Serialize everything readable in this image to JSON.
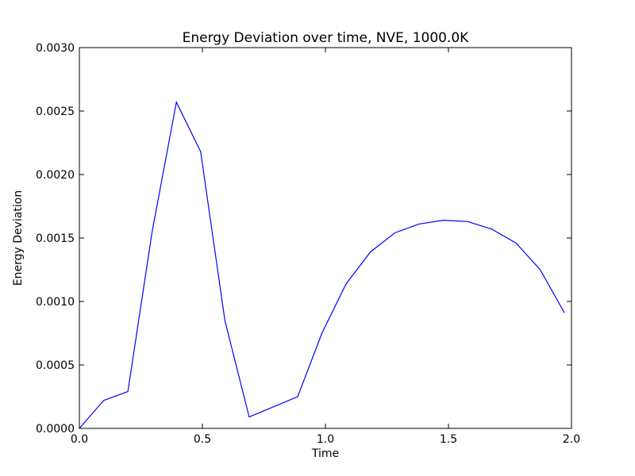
{
  "chart_data": {
    "type": "line",
    "title": "Energy Deviation over time, NVE, 1000.0K",
    "xlabel": "Time",
    "ylabel": "Energy Deviation",
    "xlim": [
      0.0,
      2.0
    ],
    "ylim": [
      0.0,
      0.003
    ],
    "grid": false,
    "x_ticks": [
      "0.0",
      "0.5",
      "1.0",
      "1.5",
      "2.0"
    ],
    "y_ticks": [
      "0.0000",
      "0.0005",
      "0.0010",
      "0.0015",
      "0.0020",
      "0.0025",
      "0.0030"
    ],
    "series": [
      {
        "color": "#0000ff",
        "x": [
          0.0,
          0.0986,
          0.1971,
          0.2957,
          0.3943,
          0.4929,
          0.5914,
          0.69,
          0.7886,
          0.8871,
          0.9857,
          1.0843,
          1.1829,
          1.2814,
          1.38,
          1.4786,
          1.5771,
          1.6757,
          1.7743,
          1.8729,
          1.9714
        ],
        "values": [
          0.0,
          0.00022,
          0.00029,
          0.00155,
          0.00257,
          0.00218,
          0.00085,
          9e-05,
          0.00017,
          0.00025,
          0.00075,
          0.00114,
          0.00139,
          0.00154,
          0.00161,
          0.00164,
          0.00163,
          0.00157,
          0.00146,
          0.00125,
          0.00091
        ]
      }
    ]
  }
}
